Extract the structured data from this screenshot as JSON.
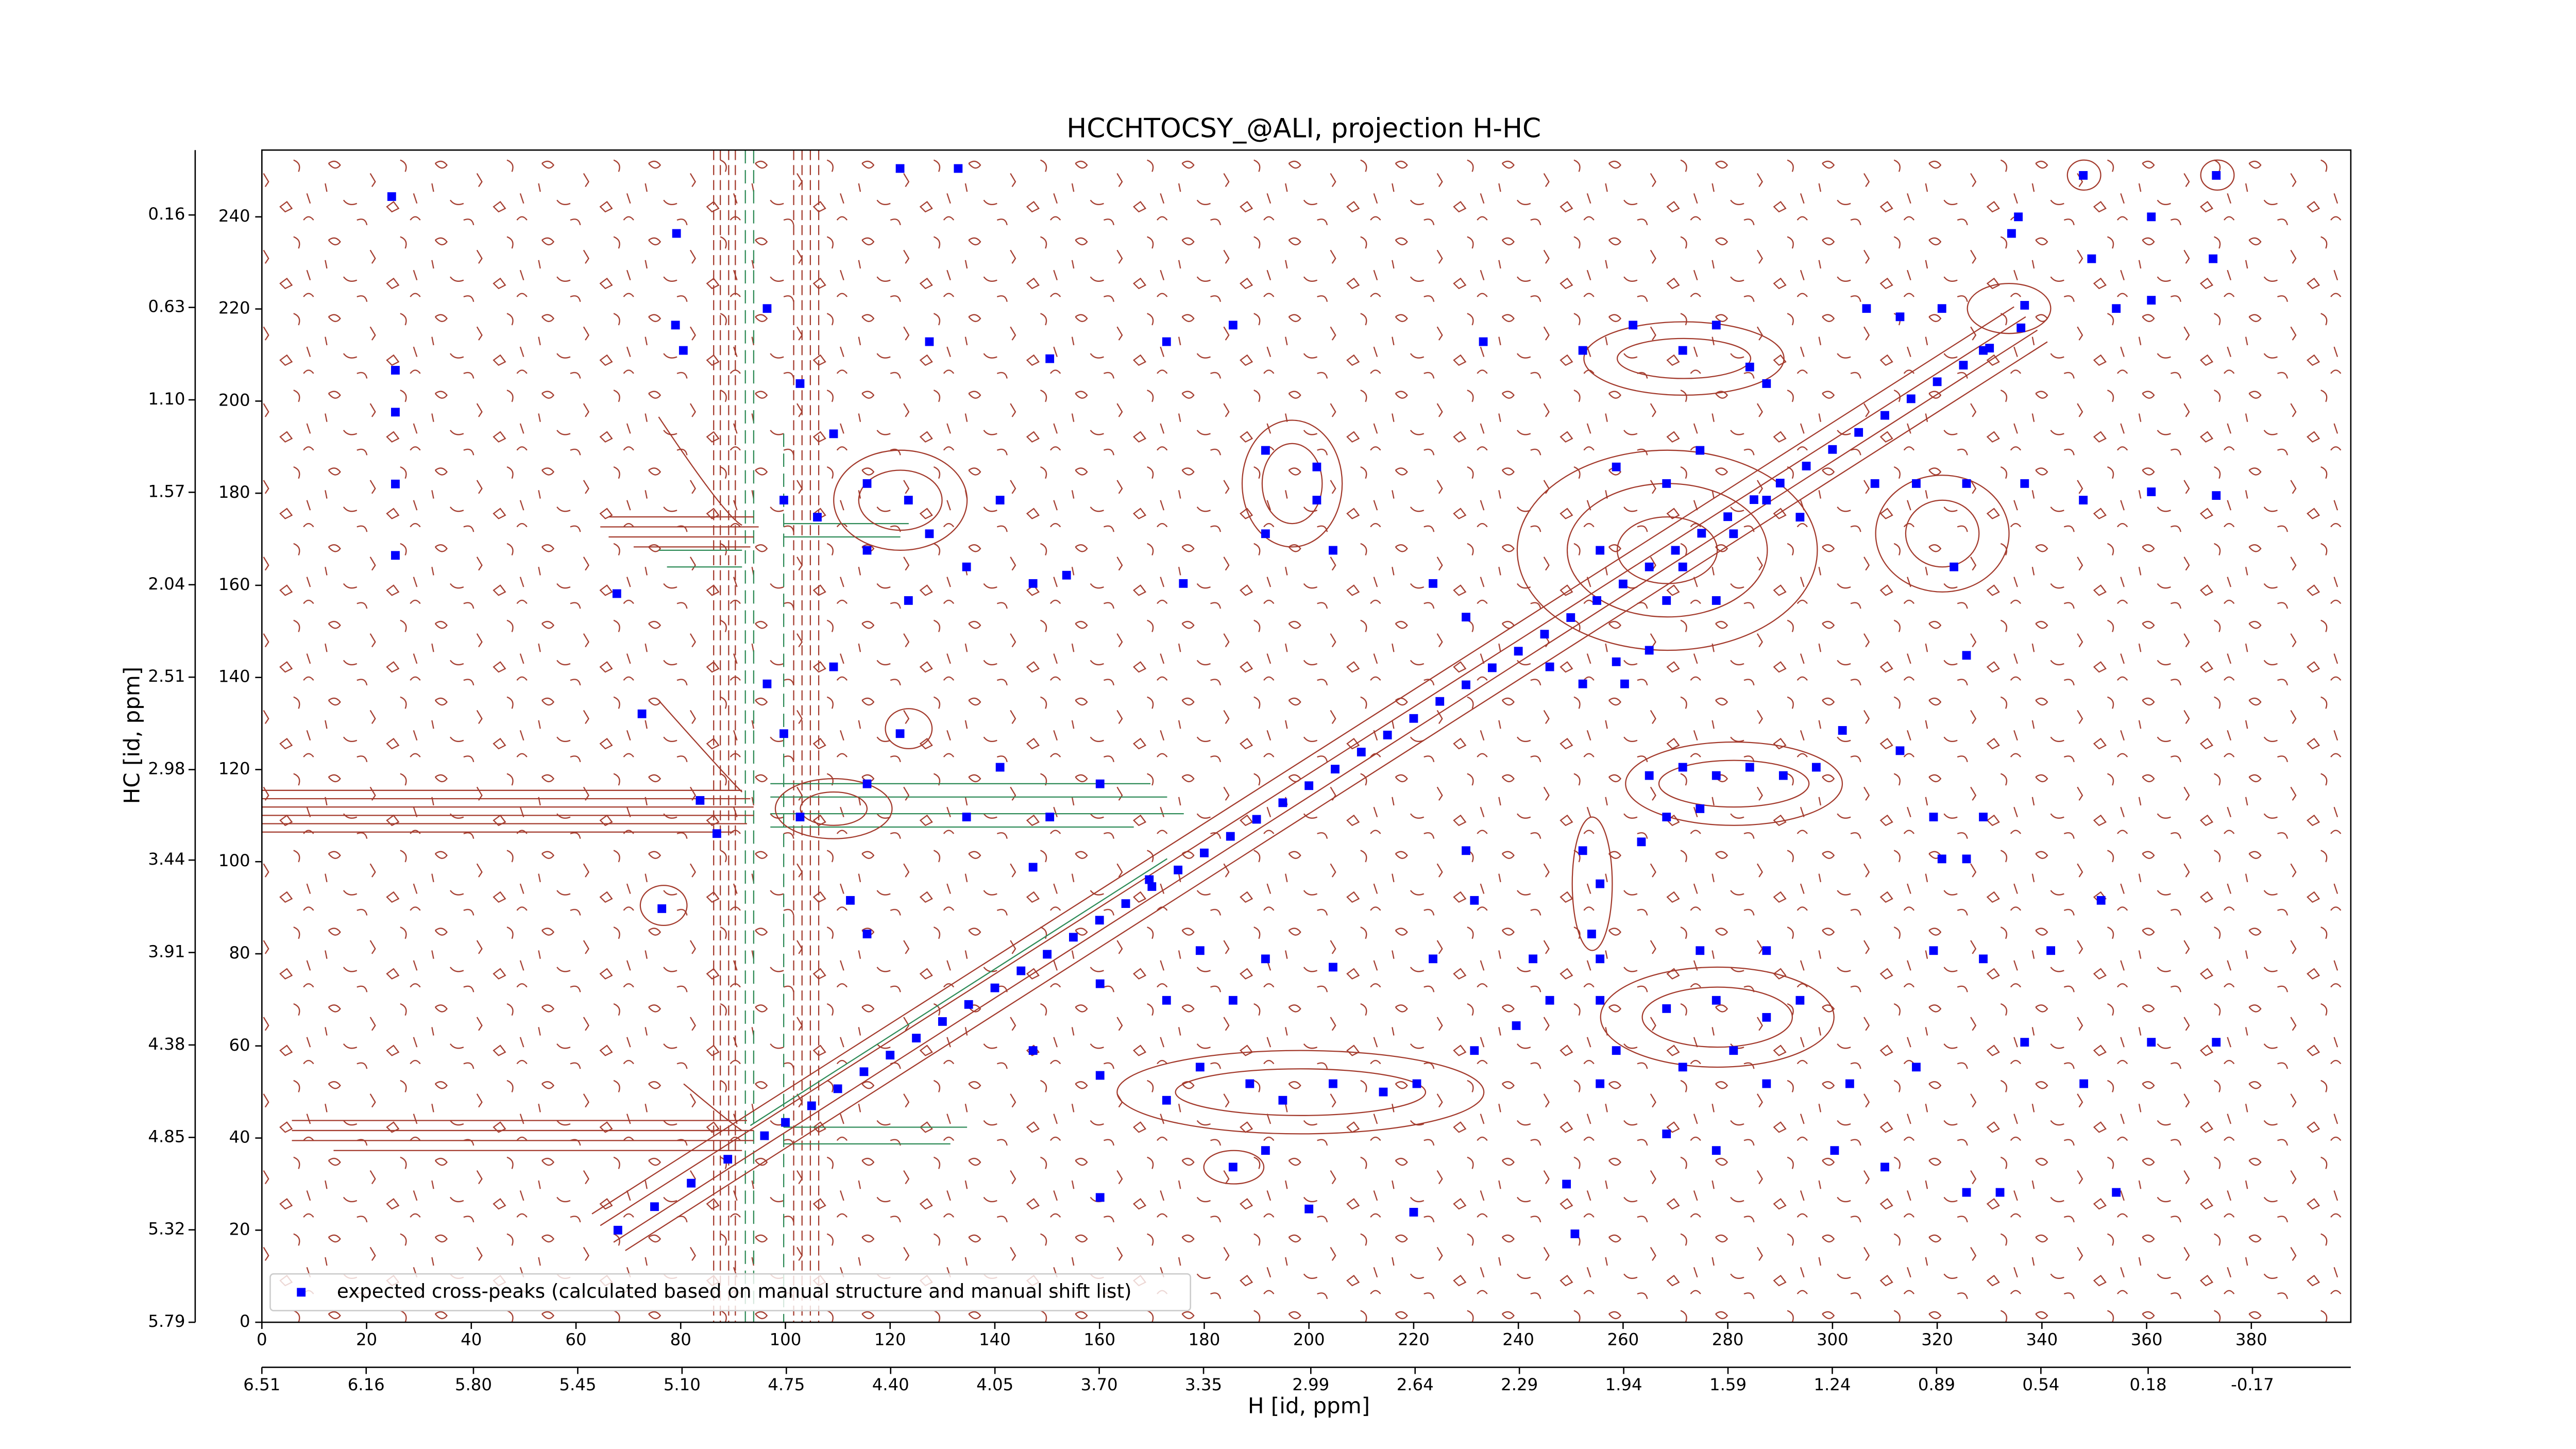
{
  "chart_data": {
    "type": "scatter",
    "title": "HCCHTOCSY_@ALI, projection H-HC",
    "x_label": "H [id, ppm]",
    "y_label": "HC [id, ppm]",
    "xlim": [
      0,
      399
    ],
    "xticks": [
      0,
      20,
      40,
      60,
      80,
      100,
      120,
      140,
      160,
      180,
      200,
      220,
      240,
      260,
      280,
      300,
      320,
      340,
      360,
      380
    ],
    "ylim": [
      0,
      254.5
    ],
    "yticks": [
      0,
      20,
      40,
      60,
      80,
      100,
      120,
      140,
      160,
      180,
      200,
      220,
      240
    ],
    "x2lim": [
      6.51,
      -0.5
    ],
    "x2ticks": [
      6.51,
      6.16,
      {
        "value": 5.8,
        "label": "5.80"
      },
      5.45,
      {
        "value": 5.1,
        "label": "5.10"
      },
      4.75,
      {
        "value": 4.4,
        "label": "4.40"
      },
      4.05,
      {
        "value": 3.7,
        "label": "3.70"
      },
      3.35,
      2.99,
      2.64,
      2.29,
      1.94,
      1.59,
      1.24,
      0.89,
      0.54,
      0.18,
      -0.17
    ],
    "y2lim": [
      5.79,
      -0.17
    ],
    "y2ticks": [
      0.16,
      0.63,
      {
        "value": 1.1,
        "label": "1.10"
      },
      1.57,
      2.04,
      2.51,
      2.98,
      3.44,
      3.91,
      4.38,
      4.85,
      5.32,
      5.79
    ],
    "legend": "lower left",
    "series": [
      {
        "name": "expected cross-peaks (calculated based on manual structure and manual shift list)",
        "color": "#0000ff",
        "x": [
          68,
          75,
          82,
          89,
          96,
          100,
          105,
          110,
          115,
          120,
          125,
          130,
          135,
          140,
          145,
          150,
          155,
          160,
          165,
          170,
          175,
          180,
          185,
          190,
          195,
          200,
          205,
          210,
          215,
          220,
          225,
          230,
          235,
          240,
          245,
          250,
          255,
          260,
          265,
          270,
          275,
          280,
          285,
          290,
          295,
          300,
          305,
          310,
          315,
          320,
          325,
          330,
          336,
          24.8,
          25.5,
          25.5,
          25.5,
          25.5,
          79.2,
          79,
          80.5,
          121.9,
          133,
          67.8,
          72.6,
          76.4,
          115.6,
          123.5,
          127.5,
          134.6,
          123.5,
          141,
          147.3,
          153.7,
          176,
          191.7,
          201.5,
          191.7,
          204.6,
          201.5,
          172.8,
          185.5,
          150.5,
          127.5,
          233.3,
          252.3,
          261.9,
          271.4,
          277.8,
          284.2,
          287.4,
          306.5,
          312.9,
          320.9,
          328.8,
          336.7,
          347.9,
          349.5,
          360.9,
          373.3,
          372.7,
          354.2,
          360.9,
          335.5,
          334.2,
          308.1,
          316,
          325.6,
          336.7,
          347.9,
          360.9,
          373.3,
          323.2,
          325.6,
          258.7,
          268.3,
          274.7,
          281.1,
          287.4,
          293.8,
          255.6,
          246,
          252.3,
          265,
          271.4,
          277.8,
          268.3,
          223.7,
          230,
          258.7,
          260.3,
          265,
          271.4,
          277.8,
          284.2,
          290.6,
          296.9,
          268.3,
          274.7,
          301.9,
          263.5,
          319.3,
          328.8,
          320.9,
          325.6,
          252.3,
          255.6,
          254,
          255.6,
          230,
          231.6,
          223.7,
          242.8,
          246,
          255.6,
          268.3,
          277.8,
          287.4,
          293.8,
          274.7,
          287.4,
          271.4,
          281.1,
          287.4,
          268.3,
          277.8,
          300.4,
          310,
          303.3,
          325.6,
          332,
          316,
          319.3,
          328.8,
          255.6,
          258.7,
          249.2,
          250.8,
          160.1,
          172.8,
          179.2,
          188.7,
          195,
          204.6,
          214.2,
          220.6,
          231.6,
          239.6,
          185.5,
          191.7,
          200,
          220,
          160.1,
          179.2,
          191.7,
          204.6,
          185.5,
          160.1,
          147.3,
          169.5,
          172.8,
          83.7,
          86.9,
          96.5,
          99.7,
          102.8,
          115.6,
          112.4,
          115.6,
          121.9,
          109.2,
          99.7,
          106.1,
          115.6,
          96.5,
          102.8,
          109.2,
          147.3,
          150.5,
          160.1,
          134.6,
          141,
          354.2,
          360.9,
          373.3,
          341.7,
          348,
          351.3,
          336.7,
          312.9
        ],
        "values": [
          20,
          25.1,
          30.2,
          35.4,
          40.5,
          43.4,
          47,
          50.7,
          54.4,
          58,
          61.7,
          65.3,
          69,
          72.6,
          76.3,
          79.9,
          83.6,
          87.3,
          90.9,
          94.6,
          98.2,
          101.9,
          105.5,
          109.2,
          112.8,
          116.5,
          120.1,
          123.8,
          127.5,
          131.1,
          134.8,
          138.4,
          142.1,
          145.7,
          149.4,
          153,
          156.7,
          160.3,
          164,
          167.6,
          171.3,
          174.9,
          178.6,
          182.2,
          185.9,
          189.5,
          193.2,
          196.9,
          200.5,
          204.2,
          207.8,
          211.5,
          215.9,
          244.4,
          206.7,
          197.6,
          182,
          166.5,
          236.4,
          216.5,
          211,
          250.5,
          250.5,
          158.2,
          132.1,
          89.8,
          182.1,
          178.5,
          171.2,
          164,
          156.7,
          178.5,
          160.4,
          162.2,
          160.4,
          189.3,
          185.7,
          171.2,
          167.6,
          178.5,
          212.9,
          216.5,
          209.2,
          212.9,
          212.9,
          211,
          216.5,
          211,
          216.5,
          207.4,
          203.8,
          220.1,
          218.3,
          220.1,
          211,
          220.8,
          249,
          230.9,
          240,
          249,
          230.9,
          220.1,
          221.9,
          240,
          236.4,
          182.1,
          182.1,
          182.1,
          182.1,
          178.5,
          180.3,
          179.5,
          164,
          144.8,
          185.7,
          182.1,
          189.3,
          171.2,
          178.5,
          174.8,
          167.6,
          142.3,
          138.6,
          145.9,
          164,
          156.7,
          156.7,
          160.4,
          153.1,
          143.4,
          138.6,
          118.7,
          120.5,
          118.7,
          120.5,
          118.7,
          120.5,
          109.7,
          111.5,
          128.5,
          104.3,
          109.7,
          109.7,
          100.6,
          100.6,
          102.4,
          95.2,
          84.3,
          78.9,
          102.4,
          91.6,
          78.9,
          78.9,
          69.9,
          69.9,
          68.1,
          69.9,
          66.2,
          69.9,
          80.7,
          80.7,
          55.4,
          59,
          51.8,
          40.9,
          37.3,
          37.3,
          33.7,
          51.8,
          28.2,
          28.2,
          55.4,
          80.7,
          78.9,
          51.8,
          59,
          30,
          19.2,
          53.6,
          48.2,
          55.4,
          51.8,
          48.2,
          51.8,
          50,
          51.8,
          59,
          64.4,
          33.7,
          37.3,
          24.6,
          23.9,
          27.1,
          80.7,
          78.9,
          77.1,
          69.9,
          73.5,
          59,
          96.1,
          69.9,
          113.3,
          106.1,
          138.6,
          127.8,
          109.7,
          116.9,
          91.6,
          84.3,
          127.8,
          142.3,
          178.5,
          174.8,
          167.6,
          220.1,
          203.8,
          192.9,
          98.8,
          109.7,
          116.9,
          109.7,
          120.5,
          28.2,
          60.8,
          60.8,
          80.7,
          51.8,
          91.6,
          60.8,
          124.1
        ]
      }
    ]
  }
}
